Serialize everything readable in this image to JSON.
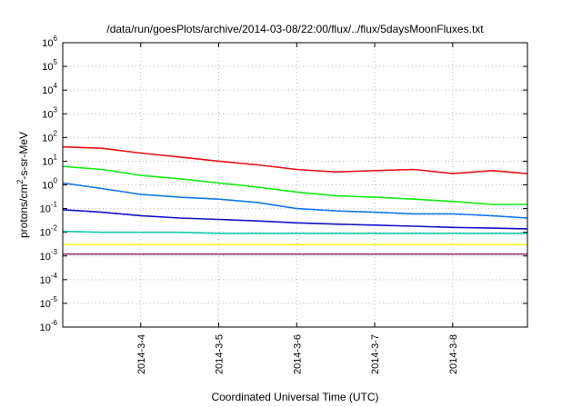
{
  "chart_data": {
    "type": "line",
    "title": "/data/run/goesPlots/archive/2014-03-08/22:00/flux/../flux/5daysMoonFluxes.txt",
    "xlabel": "Coordinated Universal Time (UTC)",
    "ylabel": "protons/cm2-s-sr-MeV",
    "ylabel_parts": {
      "base": "protons/cm",
      "sup": "2",
      "rest": "-s-sr-MeV"
    },
    "yscale": "log",
    "ylim": [
      1e-06,
      1000000.0
    ],
    "y_ticks": [
      {
        "exp": "-6",
        "value": 1e-06
      },
      {
        "exp": "-5",
        "value": 1e-05
      },
      {
        "exp": "-4",
        "value": 0.0001
      },
      {
        "exp": "-3",
        "value": 0.001
      },
      {
        "exp": "-2",
        "value": 0.01
      },
      {
        "exp": "-1",
        "value": 0.1
      },
      {
        "exp": "0",
        "value": 1
      },
      {
        "exp": "1",
        "value": 10
      },
      {
        "exp": "2",
        "value": 100
      },
      {
        "exp": "3",
        "value": 1000
      },
      {
        "exp": "4",
        "value": 10000
      },
      {
        "exp": "5",
        "value": 100000
      },
      {
        "exp": "6",
        "value": 1000000
      }
    ],
    "tick_base": "10",
    "xlim": [
      "2014-03-03T00:00",
      "2014-03-08T23:00"
    ],
    "x_ticks": [
      {
        "label": "2014-3-4",
        "date": "2014-03-04"
      },
      {
        "label": "2014-3-5",
        "date": "2014-03-05"
      },
      {
        "label": "2014-3-6",
        "date": "2014-03-06"
      },
      {
        "label": "2014-3-7",
        "date": "2014-03-07"
      },
      {
        "label": "2014-3-8",
        "date": "2014-03-08"
      }
    ],
    "grid": true,
    "colors": {
      "red": "#ee1111",
      "green": "#11ee11",
      "skyblue": "#1177ee",
      "blue": "#1111cc",
      "teal": "#11ccaa",
      "yellow": "#ffff11",
      "maroon": "#993366"
    },
    "series": [
      {
        "color": "red",
        "x": [
          "2014-03-03T00:00",
          "2014-03-03T12:00",
          "2014-03-04T00:00",
          "2014-03-04T12:00",
          "2014-03-05T00:00",
          "2014-03-05T12:00",
          "2014-03-06T00:00",
          "2014-03-06T12:00",
          "2014-03-07T00:00",
          "2014-03-07T12:00",
          "2014-03-08T00:00",
          "2014-03-08T12:00",
          "2014-03-08T23:00"
        ],
        "y": [
          40,
          35,
          22,
          15,
          10,
          7,
          4.5,
          3.5,
          4,
          4.5,
          3,
          4,
          3
        ]
      },
      {
        "color": "green",
        "x": [
          "2014-03-03T00:00",
          "2014-03-03T12:00",
          "2014-03-04T00:00",
          "2014-03-04T12:00",
          "2014-03-05T00:00",
          "2014-03-05T12:00",
          "2014-03-06T00:00",
          "2014-03-06T12:00",
          "2014-03-07T00:00",
          "2014-03-07T12:00",
          "2014-03-08T00:00",
          "2014-03-08T12:00",
          "2014-03-08T23:00"
        ],
        "y": [
          6,
          4.5,
          2.5,
          1.8,
          1.2,
          0.8,
          0.5,
          0.35,
          0.3,
          0.25,
          0.2,
          0.15,
          0.15
        ]
      },
      {
        "color": "skyblue",
        "x": [
          "2014-03-03T00:00",
          "2014-03-03T12:00",
          "2014-03-04T00:00",
          "2014-03-04T12:00",
          "2014-03-05T00:00",
          "2014-03-05T12:00",
          "2014-03-06T00:00",
          "2014-03-06T12:00",
          "2014-03-07T00:00",
          "2014-03-07T12:00",
          "2014-03-08T00:00",
          "2014-03-08T12:00",
          "2014-03-08T23:00"
        ],
        "y": [
          1.2,
          0.7,
          0.4,
          0.3,
          0.25,
          0.18,
          0.1,
          0.08,
          0.07,
          0.06,
          0.06,
          0.05,
          0.04
        ]
      },
      {
        "color": "blue",
        "x": [
          "2014-03-03T00:00",
          "2014-03-03T12:00",
          "2014-03-04T00:00",
          "2014-03-04T12:00",
          "2014-03-05T00:00",
          "2014-03-05T12:00",
          "2014-03-06T00:00",
          "2014-03-06T12:00",
          "2014-03-07T00:00",
          "2014-03-07T12:00",
          "2014-03-08T00:00",
          "2014-03-08T12:00",
          "2014-03-08T23:00"
        ],
        "y": [
          0.09,
          0.07,
          0.05,
          0.04,
          0.035,
          0.03,
          0.025,
          0.022,
          0.02,
          0.018,
          0.016,
          0.015,
          0.014
        ]
      },
      {
        "color": "teal",
        "x": [
          "2014-03-03T00:00",
          "2014-03-03T12:00",
          "2014-03-04T00:00",
          "2014-03-04T12:00",
          "2014-03-05T00:00",
          "2014-03-05T12:00",
          "2014-03-06T00:00",
          "2014-03-06T12:00",
          "2014-03-07T00:00",
          "2014-03-07T12:00",
          "2014-03-08T00:00",
          "2014-03-08T12:00",
          "2014-03-08T23:00"
        ],
        "y": [
          0.011,
          0.01,
          0.01,
          0.01,
          0.009,
          0.009,
          0.009,
          0.009,
          0.009,
          0.009,
          0.009,
          0.009,
          0.009
        ]
      },
      {
        "color": "yellow",
        "x": [
          "2014-03-03T00:00",
          "2014-03-03T12:00",
          "2014-03-04T00:00",
          "2014-03-04T12:00",
          "2014-03-05T00:00",
          "2014-03-05T12:00",
          "2014-03-06T00:00",
          "2014-03-06T12:00",
          "2014-03-07T00:00",
          "2014-03-07T12:00",
          "2014-03-08T00:00",
          "2014-03-08T12:00",
          "2014-03-08T23:00"
        ],
        "y": [
          0.003,
          0.003,
          0.003,
          0.003,
          0.003,
          0.003,
          0.003,
          0.003,
          0.003,
          0.003,
          0.003,
          0.003,
          0.003
        ]
      },
      {
        "color": "maroon",
        "x": [
          "2014-03-03T00:00",
          "2014-03-03T12:00",
          "2014-03-04T00:00",
          "2014-03-04T12:00",
          "2014-03-05T00:00",
          "2014-03-05T12:00",
          "2014-03-06T00:00",
          "2014-03-06T12:00",
          "2014-03-07T00:00",
          "2014-03-07T12:00",
          "2014-03-08T00:00",
          "2014-03-08T12:00",
          "2014-03-08T23:00"
        ],
        "y": [
          0.0012,
          0.0012,
          0.0012,
          0.0012,
          0.0012,
          0.0012,
          0.0012,
          0.0012,
          0.0012,
          0.0012,
          0.0012,
          0.0012,
          0.0012
        ]
      }
    ]
  }
}
